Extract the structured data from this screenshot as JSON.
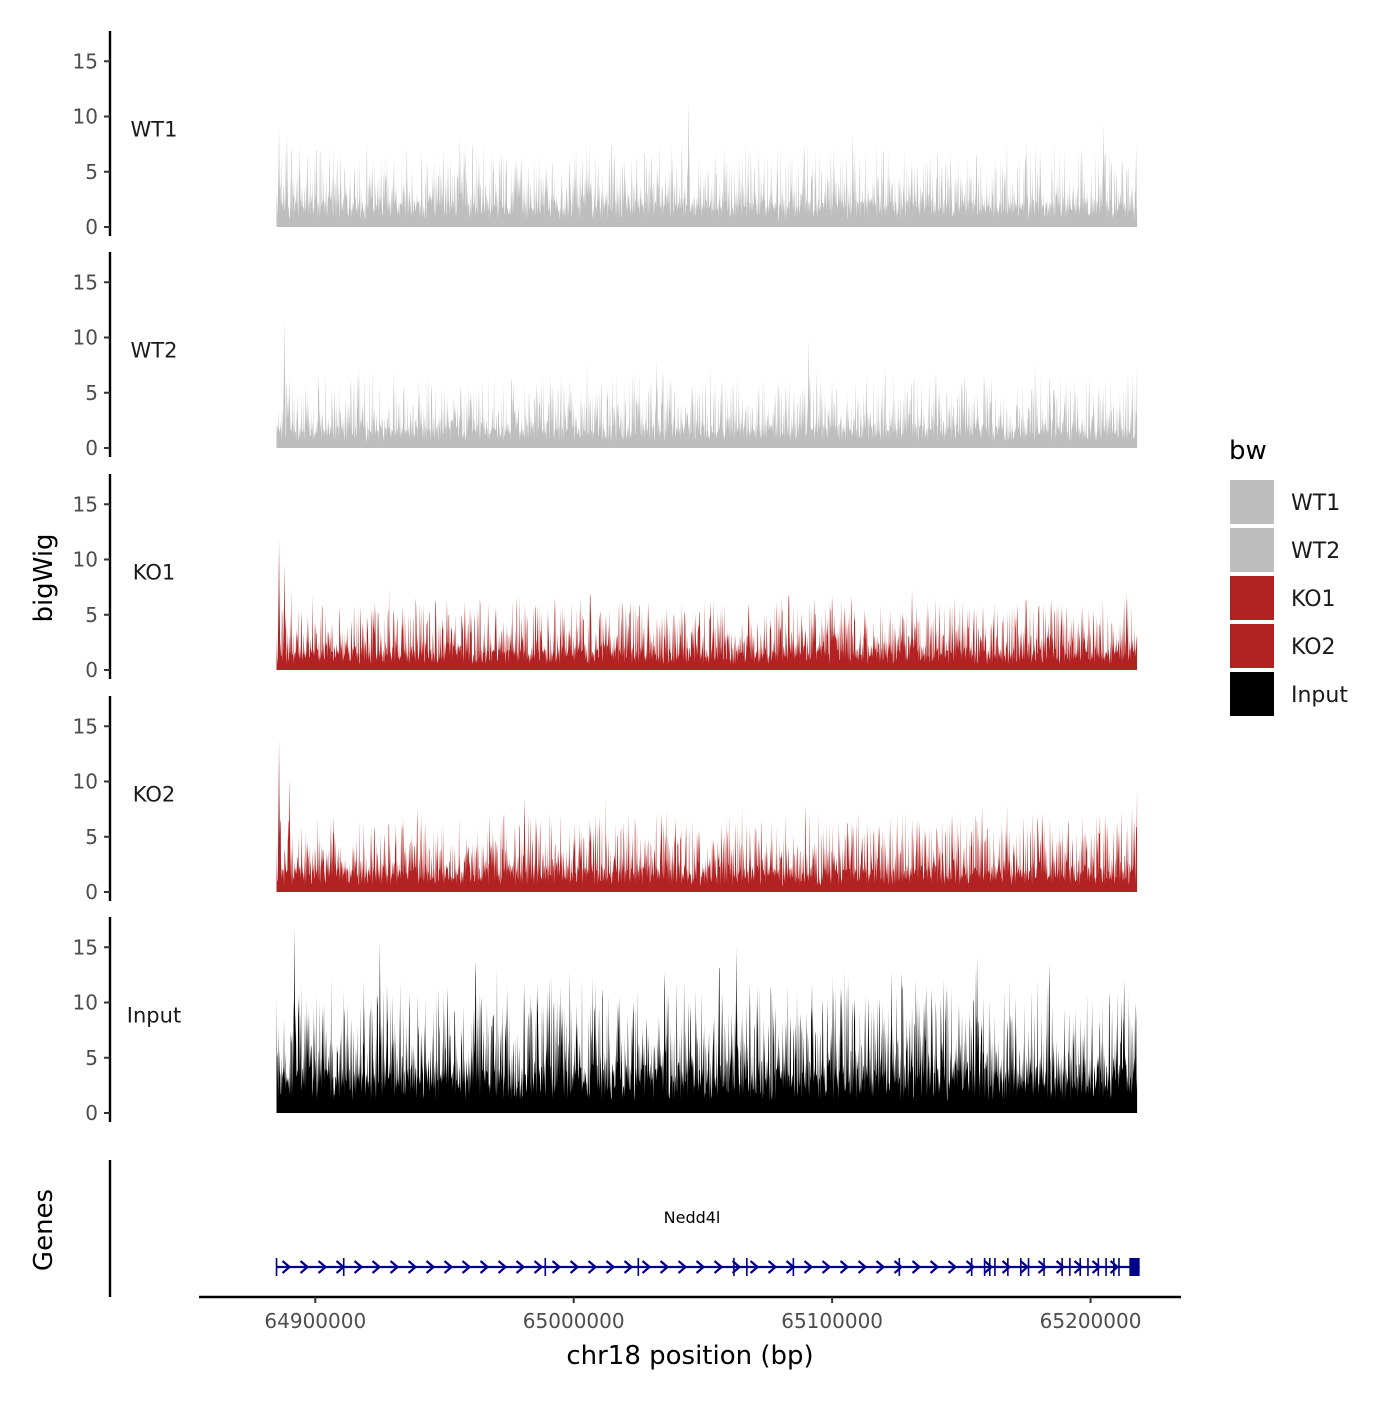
{
  "chart_data": {
    "type": "area",
    "title": "",
    "ylabel": "bigWig",
    "genes_label": "Genes",
    "xlabel": "chr18 position (bp)",
    "xlim": [
      64855000,
      65235000
    ],
    "data_range": [
      64885000,
      65218000
    ],
    "ylim": [
      0,
      18
    ],
    "y_ticks": [
      "0",
      "5",
      "10",
      "15"
    ],
    "x_ticks": [
      {
        "value": 64900000,
        "label": "64900000"
      },
      {
        "value": 65000000,
        "label": "65000000"
      },
      {
        "value": 65100000,
        "label": "65100000"
      },
      {
        "value": 65200000,
        "label": "65200000"
      }
    ],
    "series": [
      {
        "name": "WT1",
        "color": "#bebebe",
        "baseline": 2.4,
        "noise": 3.6,
        "max": 11.5,
        "peaks": [
          {
            "x": 64886000,
            "y": 9.0
          },
          {
            "x": 64889000,
            "y": 8.5
          },
          {
            "x": 64956000,
            "y": 8.2
          },
          {
            "x": 65044500,
            "y": 11.5
          },
          {
            "x": 65108000,
            "y": 8.6
          },
          {
            "x": 65205000,
            "y": 9.4
          }
        ]
      },
      {
        "name": "WT2",
        "color": "#bebebe",
        "baseline": 2.0,
        "noise": 3.4,
        "max": 11.8,
        "peaks": [
          {
            "x": 64888000,
            "y": 11.8
          },
          {
            "x": 64890000,
            "y": 6.5
          },
          {
            "x": 65032000,
            "y": 8.0
          },
          {
            "x": 65091000,
            "y": 10.0
          },
          {
            "x": 65140000,
            "y": 6.9
          },
          {
            "x": 65218000,
            "y": 7.8
          }
        ]
      },
      {
        "name": "KO1",
        "color": "#b22222",
        "baseline": 1.9,
        "noise": 3.2,
        "max": 11.8,
        "peaks": [
          {
            "x": 64886000,
            "y": 11.8
          },
          {
            "x": 64888000,
            "y": 9.6
          },
          {
            "x": 64951000,
            "y": 6.4
          },
          {
            "x": 65029000,
            "y": 6.2
          },
          {
            "x": 65093000,
            "y": 6.5
          },
          {
            "x": 65100000,
            "y": 6.8
          },
          {
            "x": 65131000,
            "y": 7.3
          },
          {
            "x": 65175000,
            "y": 6.3
          },
          {
            "x": 65214000,
            "y": 7.0
          }
        ]
      },
      {
        "name": "KO2",
        "color": "#b22222",
        "baseline": 2.2,
        "noise": 3.5,
        "max": 13.8,
        "peaks": [
          {
            "x": 64886000,
            "y": 13.8
          },
          {
            "x": 64890000,
            "y": 10.4
          },
          {
            "x": 64981000,
            "y": 8.5
          },
          {
            "x": 65034000,
            "y": 7.1
          },
          {
            "x": 65158000,
            "y": 7.7
          },
          {
            "x": 65218000,
            "y": 9.4
          }
        ]
      },
      {
        "name": "Input",
        "color": "#000000",
        "baseline": 4.2,
        "noise": 5.6,
        "max": 16.8,
        "peaks": [
          {
            "x": 64892000,
            "y": 16.8
          },
          {
            "x": 64925000,
            "y": 15.5
          },
          {
            "x": 64962000,
            "y": 13.8
          },
          {
            "x": 65063000,
            "y": 15.0
          },
          {
            "x": 65123000,
            "y": 12.8
          },
          {
            "x": 65156000,
            "y": 14.2
          },
          {
            "x": 65184000,
            "y": 13.5
          },
          {
            "x": 65213000,
            "y": 12.1
          }
        ]
      }
    ],
    "legend": {
      "title": "bw",
      "position": "right",
      "entries": [
        {
          "label": "WT1",
          "color": "#bebebe"
        },
        {
          "label": "WT2",
          "color": "#bebebe"
        },
        {
          "label": "KO1",
          "color": "#b22222"
        },
        {
          "label": "KO2",
          "color": "#b22222"
        },
        {
          "label": "Input",
          "color": "#000000"
        }
      ]
    },
    "gene": {
      "name": "Nedd4l",
      "strand": "+",
      "color": "#00008b",
      "start": 64885000,
      "end": 65219000,
      "exons": [
        64885000,
        64911000,
        64989000,
        65025000,
        65062000,
        65067000,
        65085000,
        65126000,
        65154000,
        65159000,
        65161000,
        65163000,
        65168000,
        65173000,
        65176000,
        65182000,
        65189000,
        65192000,
        65196000,
        65199000,
        65203000,
        65206000,
        65209000,
        65211000
      ],
      "utr3": [
        65215000,
        65219000
      ]
    }
  }
}
